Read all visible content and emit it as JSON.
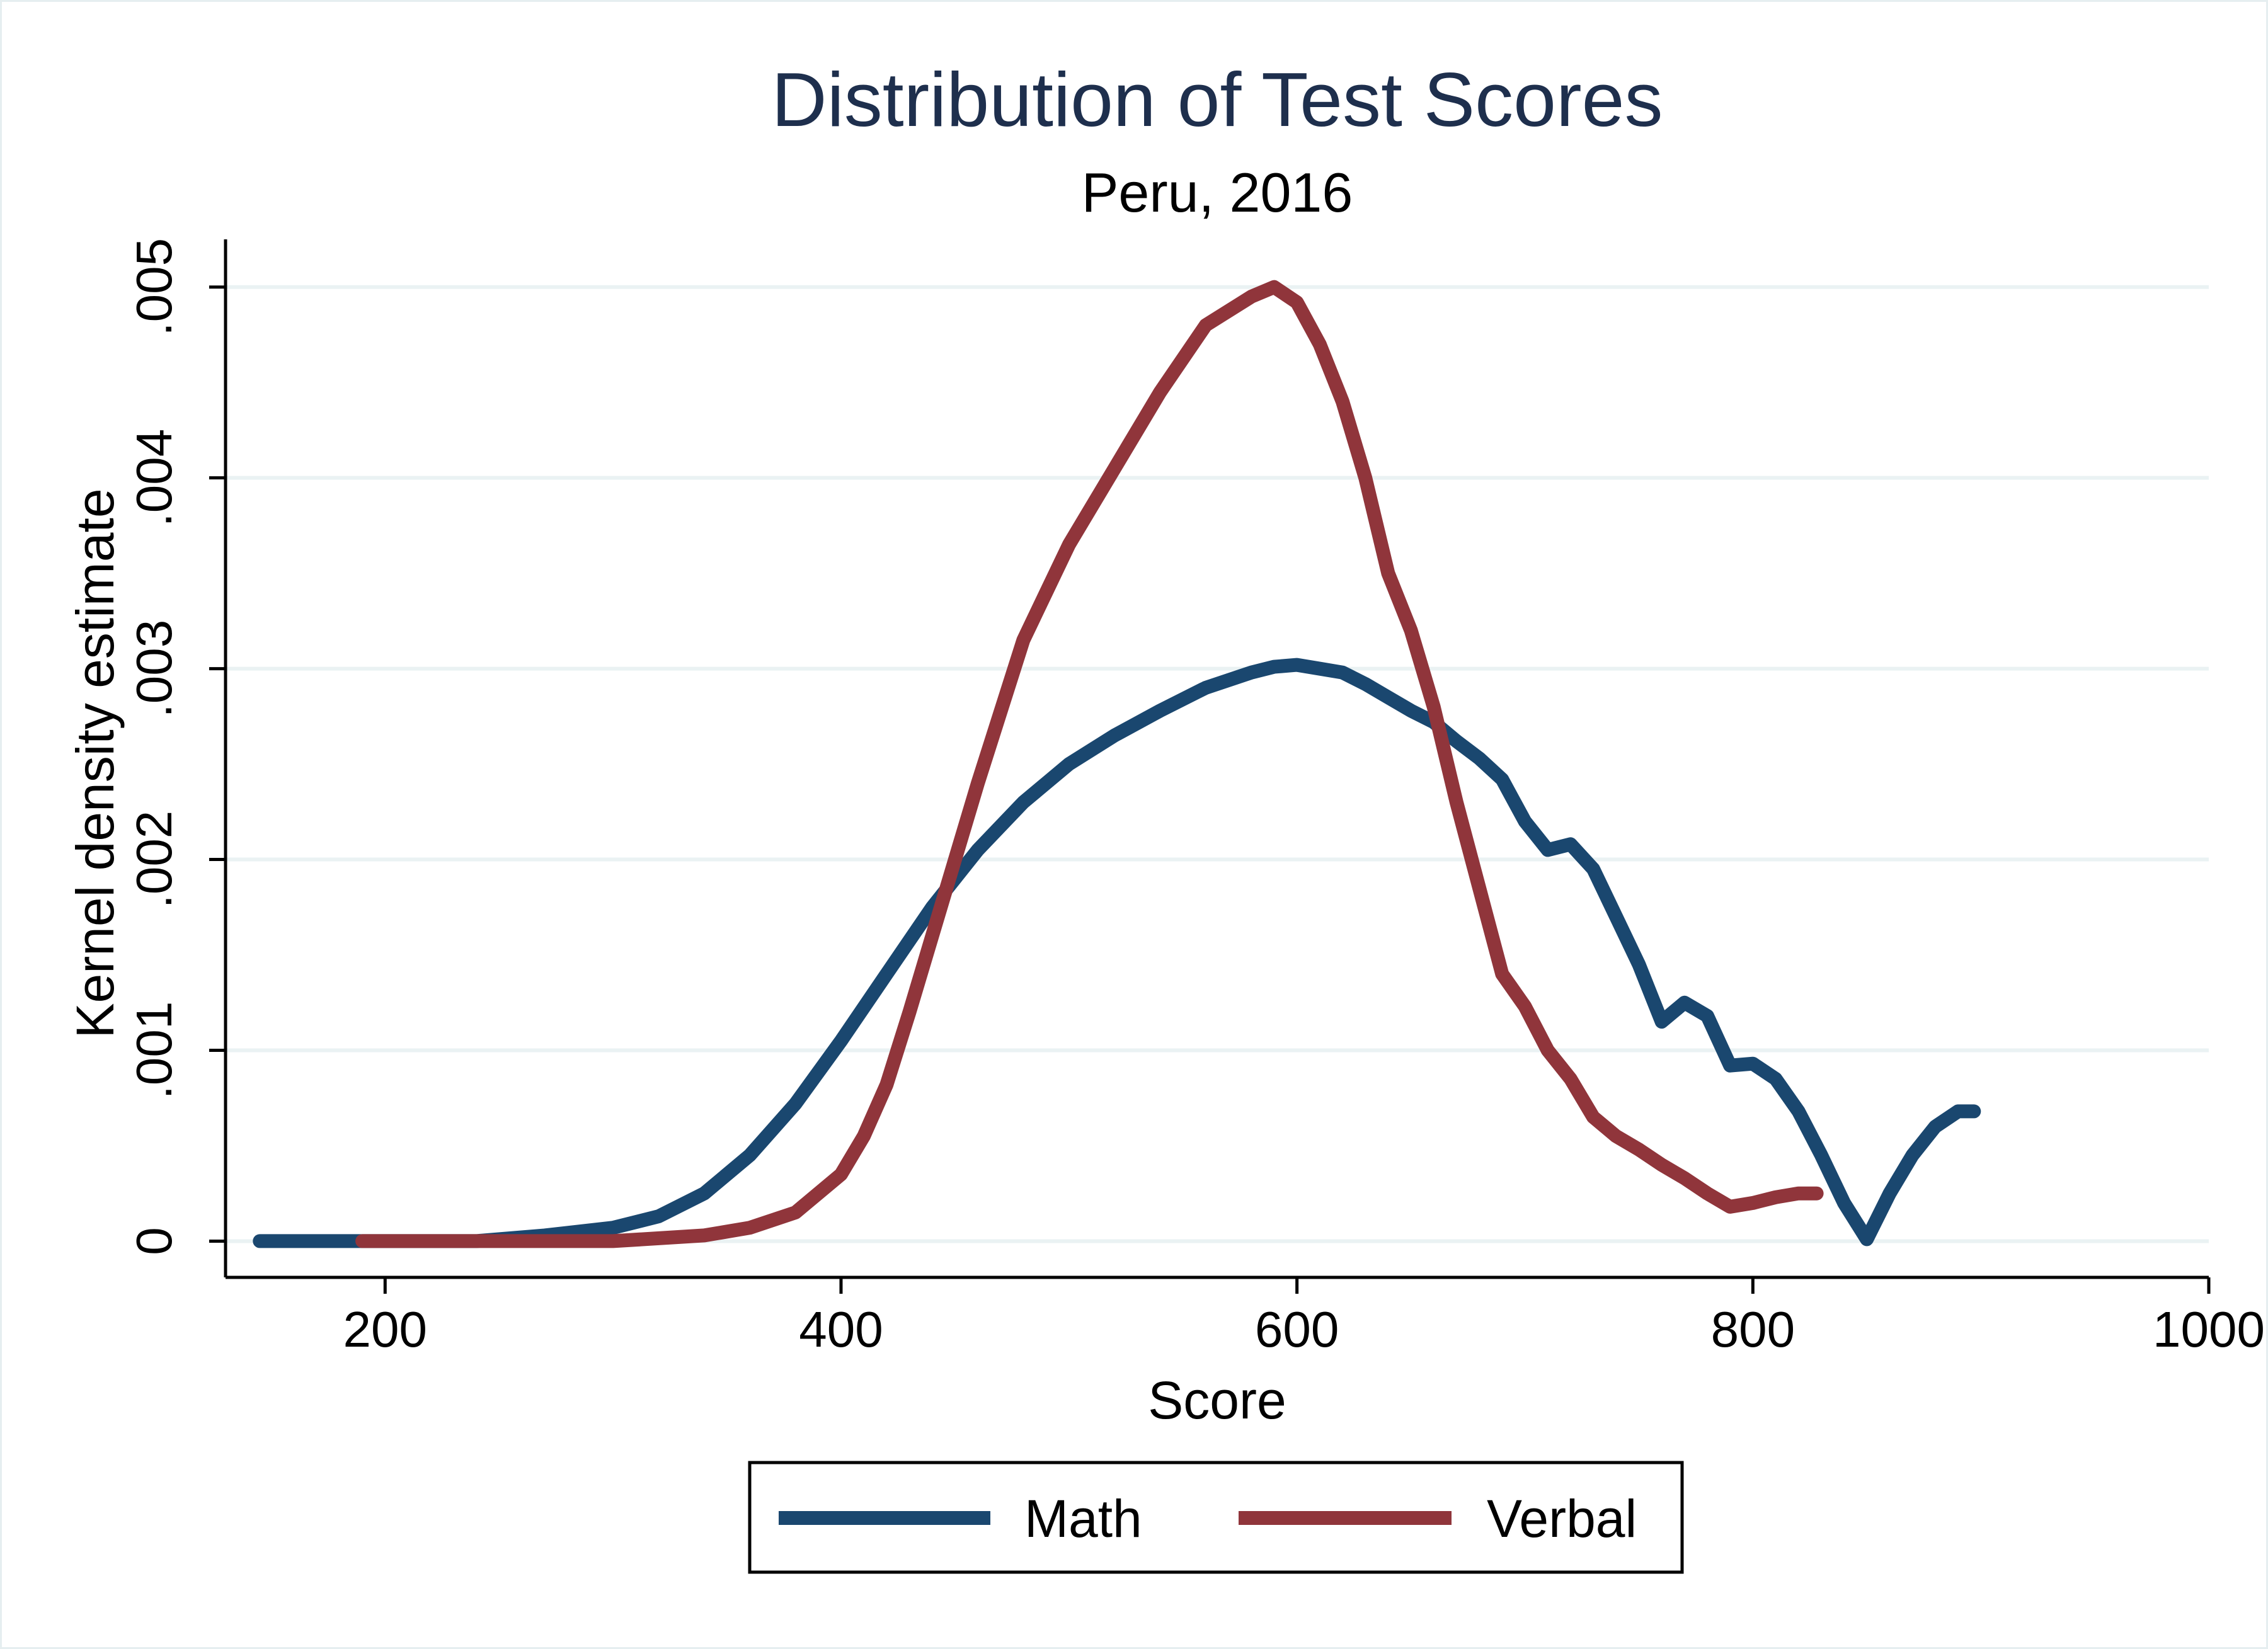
{
  "chart_data": {
    "type": "line",
    "title": "Distribution of Test Scores",
    "subtitle": "Peru, 2016",
    "xlabel": "Score",
    "ylabel": "Kernel density estimate",
    "xlim": [
      130,
      1000
    ],
    "ylim": [
      -0.00019,
      0.00525
    ],
    "x_ticks": [
      200,
      400,
      600,
      800,
      1000
    ],
    "x_tick_labels": [
      "200",
      "400",
      "600",
      "800",
      "1000"
    ],
    "y_ticks": [
      0,
      0.001,
      0.002,
      0.003,
      0.004,
      0.005
    ],
    "y_tick_labels": [
      "0",
      ".001",
      ".002",
      ".003",
      ".004",
      ".005"
    ],
    "grid": true,
    "legend": {
      "position": "bottom",
      "entries": [
        "Math",
        "Verbal"
      ]
    },
    "colors": {
      "Math": "#1a476f",
      "Verbal": "#90353b",
      "grid": "#eaf2f3",
      "axis": "#000000",
      "title": "#1e2f4d"
    },
    "series": [
      {
        "name": "Math",
        "x": [
          145,
          190,
          240,
          270,
          300,
          320,
          340,
          360,
          380,
          400,
          420,
          440,
          460,
          480,
          500,
          520,
          540,
          560,
          580,
          590,
          600,
          610,
          620,
          630,
          640,
          650,
          660,
          670,
          680,
          690,
          700,
          710,
          720,
          730,
          740,
          750,
          760,
          770,
          780,
          790,
          800,
          810,
          820,
          830,
          840,
          850,
          860,
          870,
          880,
          890,
          897
        ],
        "y": [
          0.0,
          0.0,
          0.0,
          3e-05,
          7e-05,
          0.00013,
          0.00025,
          0.00045,
          0.00072,
          0.00105,
          0.0014,
          0.00175,
          0.00205,
          0.0023,
          0.0025,
          0.00265,
          0.00278,
          0.0029,
          0.00298,
          0.00301,
          0.00302,
          0.003,
          0.00298,
          0.00292,
          0.00285,
          0.00278,
          0.00272,
          0.00262,
          0.00253,
          0.00242,
          0.0022,
          0.00205,
          0.00208,
          0.00195,
          0.0017,
          0.00145,
          0.00115,
          0.00125,
          0.00118,
          0.00092,
          0.00093,
          0.00085,
          0.00068,
          0.00045,
          0.0002,
          1e-05,
          0.00025,
          0.00045,
          0.0006,
          0.00068,
          0.00068
        ]
      },
      {
        "name": "Verbal",
        "x": [
          190,
          250,
          300,
          340,
          360,
          380,
          400,
          410,
          420,
          430,
          440,
          460,
          480,
          500,
          520,
          540,
          560,
          580,
          590,
          600,
          610,
          620,
          630,
          640,
          650,
          660,
          670,
          680,
          690,
          700,
          710,
          720,
          730,
          740,
          750,
          760,
          770,
          780,
          790,
          800,
          810,
          820,
          828
        ],
        "y": [
          0.0,
          0.0,
          0.0,
          3e-05,
          7e-05,
          0.00015,
          0.00035,
          0.00055,
          0.00082,
          0.0012,
          0.0016,
          0.0024,
          0.00315,
          0.00365,
          0.00405,
          0.00445,
          0.0048,
          0.00495,
          0.005,
          0.00492,
          0.0047,
          0.0044,
          0.004,
          0.0035,
          0.0032,
          0.0028,
          0.0023,
          0.00185,
          0.0014,
          0.00123,
          0.001,
          0.00085,
          0.00065,
          0.00055,
          0.00048,
          0.0004,
          0.00033,
          0.00025,
          0.00018,
          0.0002,
          0.00023,
          0.00025,
          0.00025
        ]
      }
    ]
  }
}
